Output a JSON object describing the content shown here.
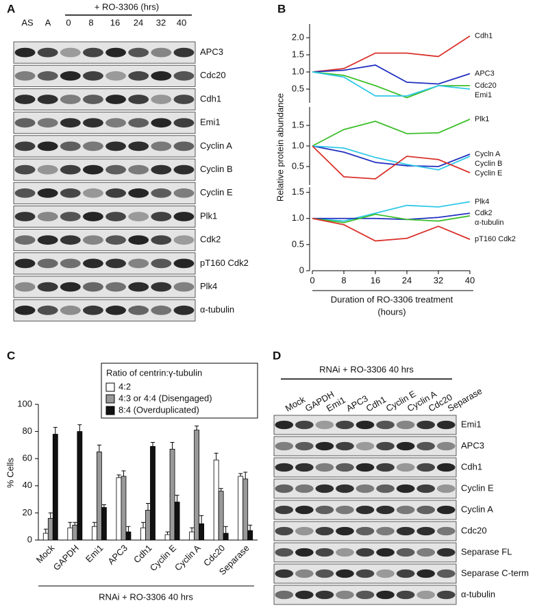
{
  "panel_labels": [
    "A",
    "B",
    "C",
    "D"
  ],
  "blot_a": {
    "header": "+ RO-3306 (hrs)",
    "lanes": [
      "AS",
      "A",
      "0",
      "8",
      "16",
      "24",
      "32",
      "40"
    ],
    "rows": [
      "APC3",
      "Cdc20",
      "Cdh1",
      "Emi1",
      "Cyclin A",
      "Cyclin B",
      "Cyclin E",
      "Plk1",
      "Cdk2",
      "pT160 Cdk2",
      "Plk4",
      "α-tubulin"
    ]
  },
  "blot_d": {
    "header": "RNAi + RO-3306 40 hrs",
    "lanes": [
      "Mock",
      "GAPDH",
      "Emi1",
      "APC3",
      "Cdh1",
      "Cyclin E",
      "Cyclin A",
      "Cdc20",
      "Separase"
    ],
    "rows": [
      "Emi1",
      "APC3",
      "Cdh1",
      "Cyclin E",
      "Cyclin A",
      "Cdc20",
      "Separase FL",
      "Separase C-term",
      "α-tubulin"
    ]
  },
  "chart_data": [
    {
      "type": "line",
      "ylabel": "Relative protein abundance",
      "xlabel": "Duration of RO-3306 treatment",
      "xlabel_unit": "(hours)",
      "x": [
        0,
        8,
        16,
        24,
        32,
        40
      ],
      "xlim": [
        0,
        40
      ],
      "xticks": [
        0,
        8,
        16,
        24,
        32,
        40
      ],
      "panels": [
        {
          "ylim": [
            0.1,
            2.4
          ],
          "yticks": [
            0.5,
            {
              "value": 1,
              "label": "1.0"
            },
            1.5,
            {
              "value": 2,
              "label": "2.0"
            }
          ],
          "series": [
            {
              "name": "Cdh1",
              "color": "#d9302a",
              "values": [
                1.0,
                1.1,
                1.55,
                1.55,
                1.45,
                2.05
              ]
            },
            {
              "name": "APC3",
              "color": "#1f2fbf",
              "values": [
                1.0,
                1.05,
                1.2,
                0.7,
                0.65,
                0.95
              ]
            },
            {
              "name": "Cdc20",
              "color": "#3cbf2a",
              "values": [
                1.0,
                0.9,
                0.6,
                0.25,
                0.6,
                0.6
              ]
            },
            {
              "name": "Emi1",
              "color": "#2ec8e8",
              "values": [
                1.0,
                0.85,
                0.3,
                0.3,
                0.6,
                0.5
              ]
            }
          ]
        },
        {
          "ylim": [
            0.05,
            1.95
          ],
          "yticks": [
            0.5,
            {
              "value": 1,
              "label": "1.0"
            },
            1.5
          ],
          "series": [
            {
              "name": "Plk1",
              "color": "#3cbf2a",
              "values": [
                1.0,
                1.4,
                1.6,
                1.3,
                1.32,
                1.65
              ]
            },
            {
              "name": "Cycln A",
              "color": "#1f2fbf",
              "values": [
                1.0,
                0.85,
                0.6,
                0.52,
                0.5,
                0.8
              ]
            },
            {
              "name": "Cyclin B",
              "color": "#2ec8e8",
              "values": [
                1.0,
                0.95,
                0.72,
                0.55,
                0.42,
                0.75
              ]
            },
            {
              "name": "Cyclin E",
              "color": "#d9302a",
              "values": [
                1.0,
                0.25,
                0.2,
                0.75,
                0.67,
                0.35
              ]
            }
          ]
        },
        {
          "ylim": [
            0,
            1.6
          ],
          "yticks": [
            0,
            0.5,
            {
              "value": 1,
              "label": "1.0"
            },
            1.5
          ],
          "series": [
            {
              "name": "Plk4",
              "color": "#2ec8e8",
              "values": [
                1.0,
                0.95,
                1.1,
                1.25,
                1.22,
                1.32
              ]
            },
            {
              "name": "Cdk2",
              "color": "#1f2fbf",
              "values": [
                1.0,
                1.0,
                1.0,
                0.98,
                1.02,
                1.1
              ]
            },
            {
              "name": "α-tubulin",
              "color": "#3cbf2a",
              "values": [
                1.0,
                0.92,
                1.08,
                0.98,
                0.95,
                1.05
              ]
            },
            {
              "name": "pT160 Cdk2",
              "color": "#d9302a",
              "values": [
                1.0,
                0.88,
                0.57,
                0.62,
                0.85,
                0.6
              ]
            }
          ]
        }
      ]
    },
    {
      "type": "bar",
      "ylabel": "% Cells",
      "xlabel": "RNAi + RO-3306 40 hrs",
      "legend_title": "Ratio of centrin:γ-tubulin",
      "categories": [
        "Mock",
        "GAPDH",
        "Emi1",
        "APC3",
        "Cdh1",
        "Cyclin E",
        "Cyclin A",
        "Cdc20",
        "Separase"
      ],
      "ylim": [
        0,
        100
      ],
      "yticks": [
        0,
        20,
        40,
        60,
        80,
        100
      ],
      "series": [
        {
          "name": "4:2",
          "color": "#ffffff",
          "values": [
            5,
            9,
            10,
            46,
            9,
            4,
            6,
            59,
            47
          ],
          "errors": [
            3,
            4,
            3,
            2,
            4,
            2,
            3,
            5,
            2
          ]
        },
        {
          "name": "4:3 or 4:4 (Disengaged)",
          "color": "#999999",
          "values": [
            16,
            11,
            65,
            47,
            22,
            67,
            81,
            36,
            45
          ],
          "errors": [
            4,
            2,
            5,
            4,
            5,
            5,
            3,
            2,
            5
          ]
        },
        {
          "name": "8:4 (Overduplicated)",
          "color": "#111111",
          "values": [
            78,
            80,
            24,
            6,
            69,
            28,
            12,
            5,
            7
          ],
          "errors": [
            5,
            5,
            2,
            4,
            3,
            5,
            6,
            5,
            4
          ]
        }
      ]
    }
  ]
}
